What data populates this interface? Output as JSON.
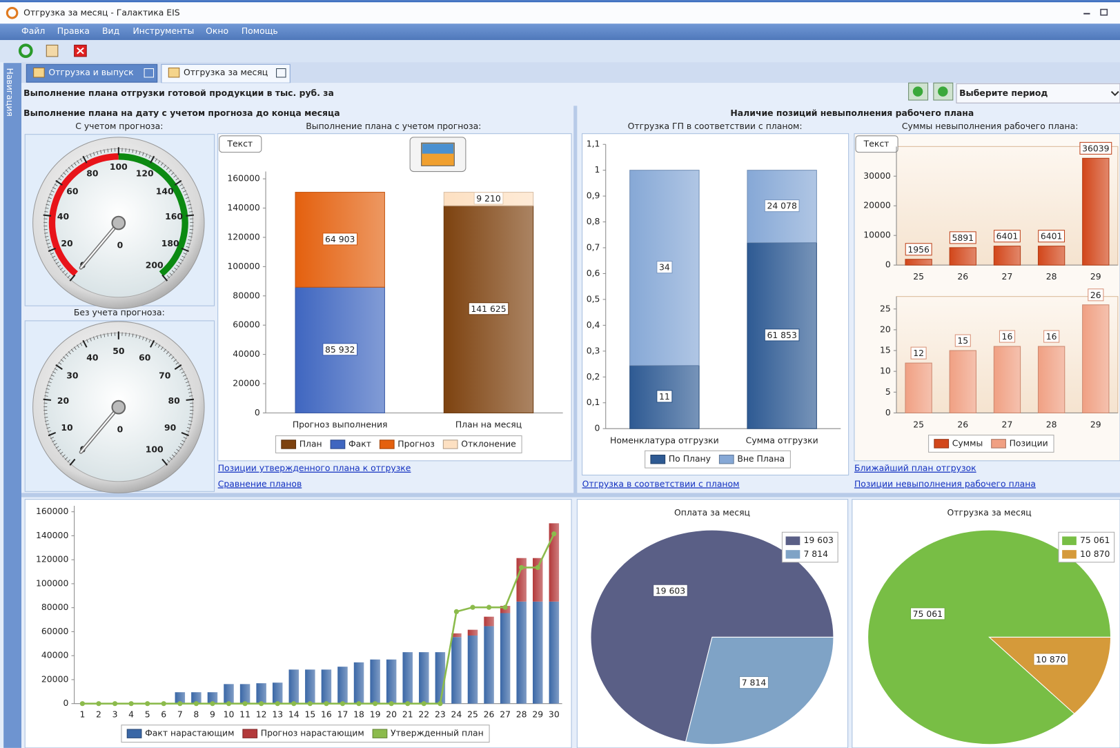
{
  "window": {
    "title": "Отгрузка за месяц - Галактика EIS"
  },
  "menu": [
    "Файл",
    "Правка",
    "Вид",
    "Инструменты",
    "Окно",
    "Помощь"
  ],
  "tabs": [
    "Отгрузка и выпуск",
    "Отгрузка за месяц"
  ],
  "navigation": "Навигация",
  "header": {
    "title": "Выполнение плана отгрузки готовой продукции в тыс. руб. за",
    "period": "Выберите период"
  },
  "sections": [
    "Выполнение плана на дату с учетом прогноза до конца месяца",
    "Наличие позиций невыполнения рабочего плана"
  ],
  "links": [
    "Позиции утвержденного плана к отгрузке",
    "Сравнение планов",
    "Отгрузка в соответствии с планом",
    "Ближайший план отгрузок",
    "Позиции невыполнения рабочего плана"
  ],
  "chart_data": [
    {
      "type": "gauge",
      "subtitle": "С учетом прогноза:",
      "value": 0,
      "range": [
        0,
        200
      ],
      "ticks": [
        0,
        20,
        40,
        60,
        80,
        100,
        120,
        140,
        160,
        180,
        200
      ],
      "bands": [
        {
          "from": 0,
          "to": 100,
          "color": "#e8141a"
        },
        {
          "from": 100,
          "to": 200,
          "color": "#0b8a12"
        }
      ]
    },
    {
      "type": "gauge",
      "subtitle": "Без учета прогноза:",
      "value": 0,
      "range": [
        0,
        100
      ],
      "ticks": [
        0,
        10,
        20,
        30,
        40,
        50,
        60,
        70,
        80,
        90,
        100
      ],
      "bands": []
    },
    {
      "type": "stacked_bar",
      "subtitle": "Выполнение плана с учетом прогноза:",
      "button": "Текст",
      "categories": [
        "Прогноз выполнения",
        "План на месяц"
      ],
      "series": [
        {
          "name": "План",
          "color": "#7d420f",
          "values": [
            null,
            141625
          ],
          "value_labels": [
            null,
            "141 625"
          ]
        },
        {
          "name": "Факт",
          "color": "#3f66c0",
          "values": [
            85932,
            null
          ],
          "value_labels": [
            "85 932",
            null
          ]
        },
        {
          "name": "Прогноз",
          "color": "#e4600e",
          "values": [
            64903,
            null
          ],
          "value_labels": [
            "64 903",
            null
          ]
        },
        {
          "name": "Отклонение",
          "color": "#fde0c2",
          "values": [
            null,
            9210
          ],
          "value_labels": [
            null,
            "9 210"
          ]
        }
      ],
      "ylim": [
        0,
        165000
      ],
      "yticks": [
        0,
        20000,
        40000,
        60000,
        80000,
        100000,
        120000,
        140000,
        160000
      ],
      "grid": false
    },
    {
      "type": "percent_bar",
      "subtitle": "Отгрузка ГП в соответствии с планом:",
      "categories": [
        "Номенклатура отгрузки",
        "Сумма отгрузки"
      ],
      "series": [
        {
          "name": "По Плану",
          "color": "#2e5a93",
          "values": [
            11,
            61853
          ],
          "value_labels": [
            "11",
            "61 853"
          ]
        },
        {
          "name": "Вне Плана",
          "color": "#86a8d6",
          "values": [
            34,
            24078
          ],
          "value_labels": [
            "34",
            "24 078"
          ]
        }
      ],
      "ylim": [
        0,
        1.1
      ],
      "yticks": [
        0,
        {
          "value": 0.1,
          "label": "0,1"
        },
        {
          "value": 0.2,
          "label": "0,2"
        },
        {
          "value": 0.3,
          "label": "0,3"
        },
        {
          "value": 0.4,
          "label": "0,4"
        },
        {
          "value": 0.5,
          "label": "0,5"
        },
        {
          "value": 0.6,
          "label": "0,6"
        },
        {
          "value": 0.7,
          "label": "0,7"
        },
        {
          "value": 0.8,
          "label": "0,8"
        },
        {
          "value": 0.9,
          "label": "0,9"
        },
        1,
        {
          "value": 1.1,
          "label": "1,1"
        }
      ],
      "grid": false
    },
    {
      "type": "bar",
      "subtitle": "Суммы невыполнения рабочего плана:",
      "button": "Текст",
      "categories": [
        "25",
        "26",
        "27",
        "28",
        "29"
      ],
      "series": [
        {
          "name": "Суммы",
          "color": "#d2461a",
          "values": [
            1956,
            5891,
            6401,
            6401,
            36039
          ]
        }
      ],
      "ylim": [
        0,
        40000
      ],
      "yticks": [
        0,
        10000,
        20000,
        30000
      ],
      "grid": false
    },
    {
      "type": "bar",
      "categories": [
        "25",
        "26",
        "27",
        "28",
        "29"
      ],
      "series": [
        {
          "name": "Позиции",
          "color": "#f0a083",
          "values": [
            12,
            15,
            16,
            16,
            26
          ]
        }
      ],
      "ylim": [
        0,
        28
      ],
      "yticks": [
        0,
        5,
        10,
        15,
        20,
        25
      ],
      "grid": false
    },
    {
      "type": "combo",
      "categories": [
        "1",
        "2",
        "3",
        "4",
        "5",
        "6",
        "7",
        "8",
        "9",
        "10",
        "11",
        "12",
        "13",
        "14",
        "15",
        "16",
        "17",
        "18",
        "19",
        "20",
        "21",
        "22",
        "23",
        "24",
        "25",
        "26",
        "27",
        "28",
        "29",
        "30"
      ],
      "series": [
        {
          "name": "Факт нарастающим",
          "type": "bar",
          "color": "#3a67a6",
          "values": [
            0,
            0,
            0,
            0,
            0,
            0,
            9500,
            9500,
            9500,
            16300,
            16300,
            17000,
            17500,
            28400,
            28400,
            28400,
            30800,
            34400,
            36800,
            36800,
            42900,
            42900,
            42900,
            55500,
            56800,
            64600,
            75500,
            85100,
            85100,
            85100
          ]
        },
        {
          "name": "Прогноз нарастающим",
          "type": "bar",
          "color": "#b3393a",
          "values": [
            0,
            0,
            0,
            0,
            0,
            0,
            0,
            0,
            0,
            0,
            0,
            0,
            0,
            0,
            0,
            0,
            0,
            0,
            0,
            0,
            0,
            0,
            0,
            3100,
            4800,
            7900,
            6000,
            36300,
            36300,
            65300
          ]
        },
        {
          "name": "Утвержденный план",
          "type": "line",
          "color": "#8cbb4c",
          "values": [
            0,
            0,
            0,
            0,
            0,
            0,
            0,
            0,
            0,
            0,
            0,
            0,
            0,
            0,
            0,
            0,
            0,
            0,
            0,
            0,
            0,
            0,
            0,
            76700,
            80300,
            80300,
            80300,
            113500,
            113500,
            141600
          ]
        }
      ],
      "ylim": [
        0,
        165000
      ],
      "yticks": [
        0,
        20000,
        40000,
        60000,
        80000,
        100000,
        120000,
        140000,
        160000
      ],
      "grid": false
    },
    {
      "type": "pie",
      "title": "Оплата за месяц",
      "values": [
        19603,
        7814
      ],
      "value_labels": [
        "19 603",
        "7 814"
      ],
      "colors": [
        "#5a5f86",
        "#7fa3c6"
      ]
    },
    {
      "type": "pie",
      "title": "Отгрузка за месяц",
      "values": [
        75061,
        10870
      ],
      "value_labels": [
        "75 061",
        "10 870"
      ],
      "colors": [
        "#78be45",
        "#d59a3a"
      ]
    }
  ]
}
